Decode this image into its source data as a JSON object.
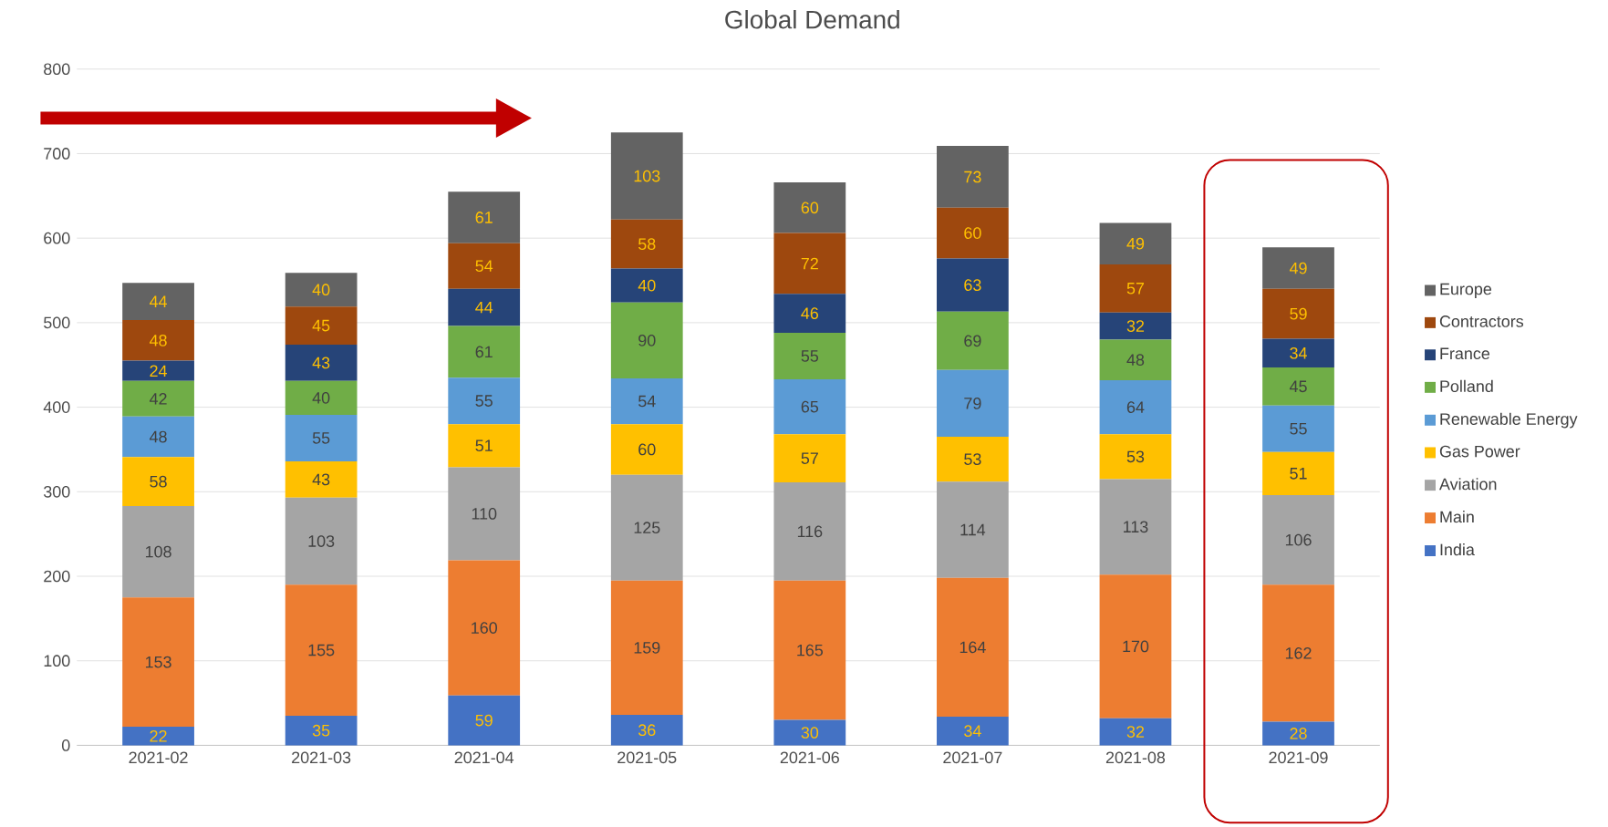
{
  "chart_data": {
    "type": "bar",
    "stacked": true,
    "title": "Global Demand",
    "categories": [
      "2021-02",
      "2021-03",
      "2021-04",
      "2021-05",
      "2021-06",
      "2021-07",
      "2021-08",
      "2021-09"
    ],
    "series": [
      {
        "name": "India",
        "color": "#4472c4",
        "values": [
          22,
          35,
          59,
          36,
          30,
          34,
          32,
          28
        ]
      },
      {
        "name": "Main",
        "color": "#ed7d31",
        "values": [
          153,
          155,
          160,
          159,
          165,
          164,
          170,
          162
        ]
      },
      {
        "name": "Aviation",
        "color": "#a5a5a5",
        "values": [
          108,
          103,
          110,
          125,
          116,
          114,
          113,
          106
        ]
      },
      {
        "name": "Gas Power",
        "color": "#ffc000",
        "values": [
          58,
          43,
          51,
          60,
          57,
          53,
          53,
          51
        ]
      },
      {
        "name": "Renewable Energy",
        "color": "#5b9bd5",
        "values": [
          48,
          55,
          55,
          54,
          65,
          79,
          64,
          55
        ]
      },
      {
        "name": "Polland",
        "color": "#70ad47",
        "values": [
          42,
          40,
          61,
          90,
          55,
          69,
          48,
          45
        ]
      },
      {
        "name": "France",
        "color": "#264478",
        "values": [
          24,
          43,
          44,
          40,
          46,
          63,
          32,
          34
        ]
      },
      {
        "name": "Contractors",
        "color": "#9e480e",
        "values": [
          48,
          45,
          54,
          58,
          72,
          60,
          57,
          59
        ]
      },
      {
        "name": "Europe",
        "color": "#636363",
        "values": [
          44,
          40,
          61,
          103,
          60,
          73,
          49,
          49
        ]
      }
    ],
    "ylim": [
      0,
      800
    ],
    "yticks": [
      0,
      100,
      200,
      300,
      400,
      500,
      600,
      700,
      800
    ],
    "grid": "y",
    "legend": "right",
    "data_labels": true
  }
}
